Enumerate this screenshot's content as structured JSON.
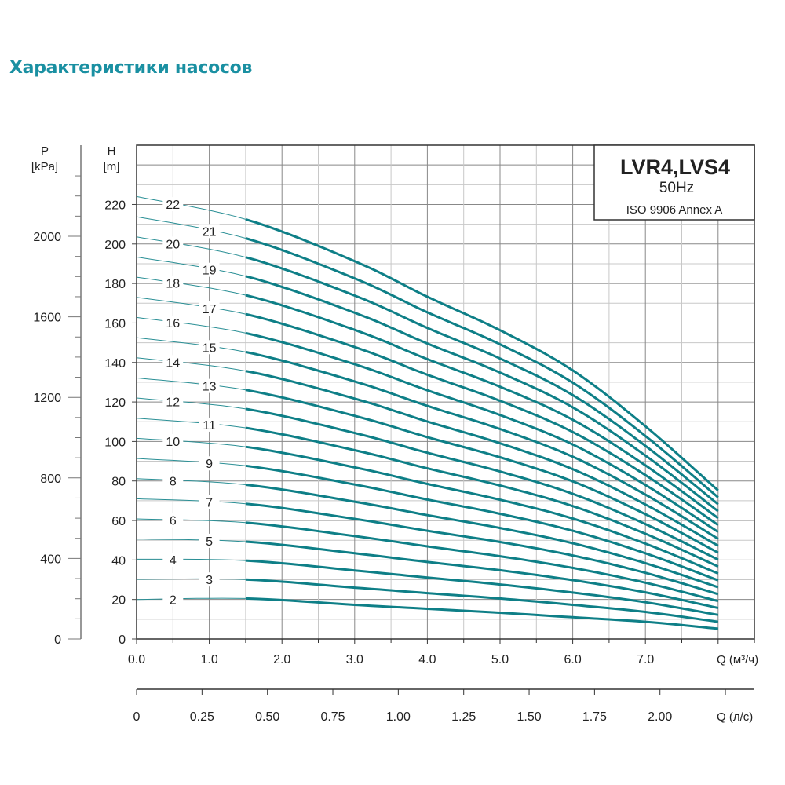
{
  "page_title": "Характеристики насосов",
  "chart_data": {
    "type": "line",
    "legend_box": {
      "model": "LVR4,LVS4",
      "frequency": "50Hz",
      "standard": "ISO 9906 Annex A"
    },
    "left_axis": {
      "label": "P",
      "unit": "[kPa]",
      "range": [
        0,
        2450
      ],
      "ticks": [
        "0",
        "400",
        "800",
        "1200",
        "1600",
        "2000"
      ]
    },
    "yaxis": {
      "label": "H",
      "unit": "[m]",
      "range": [
        0,
        250
      ],
      "ticks": [
        "0",
        "20",
        "40",
        "60",
        "80",
        "100",
        "120",
        "140",
        "160",
        "180",
        "200",
        "220"
      ]
    },
    "xaxis": {
      "label": "Q (м³/ч)",
      "range": [
        0,
        8.5
      ],
      "ticks": [
        "0.0",
        "1.0",
        "2.0",
        "3.0",
        "4.0",
        "5.0",
        "6.0",
        "7.0"
      ]
    },
    "xaxis2": {
      "label": "Q (л/с)",
      "ticks": [
        "0",
        "0.25",
        "0.50",
        "0.75",
        "1.00",
        "1.25",
        "1.50",
        "1.75",
        "2.00"
      ]
    },
    "grid": true,
    "colors": {
      "curve": "#0e7f87",
      "title": "#1a90a2"
    },
    "x": [
      0,
      1.5,
      3,
      4,
      5,
      6,
      7,
      8
    ],
    "series": [
      {
        "name": "2",
        "values": [
          20,
          20.5,
          17.3,
          15.3,
          13.3,
          11,
          8.7,
          5.2
        ]
      },
      {
        "name": "3",
        "values": [
          30.2,
          30.1,
          26,
          23.2,
          20.5,
          17.3,
          13.7,
          8.7
        ]
      },
      {
        "name": "4",
        "values": [
          40.4,
          39.7,
          34.7,
          31.1,
          27.6,
          23.5,
          18.6,
          12.2
        ]
      },
      {
        "name": "5",
        "values": [
          50.6,
          49.3,
          43.4,
          39,
          34.8,
          29.8,
          23.6,
          15.7
        ]
      },
      {
        "name": "6",
        "values": [
          60.8,
          58.9,
          52.1,
          46.9,
          41.9,
          36,
          28.5,
          19.2
        ]
      },
      {
        "name": "7",
        "values": [
          71,
          68.5,
          60.8,
          54.8,
          49.1,
          42.3,
          33.5,
          22.7
        ]
      },
      {
        "name": "8",
        "values": [
          81.2,
          78.1,
          69.5,
          62.7,
          56.2,
          48.5,
          38.4,
          26.2
        ]
      },
      {
        "name": "9",
        "values": [
          91.4,
          87.7,
          78.2,
          70.6,
          63.4,
          54.8,
          43.4,
          29.7
        ]
      },
      {
        "name": "10",
        "values": [
          101.6,
          97.3,
          86.9,
          78.5,
          70.5,
          61,
          48.3,
          33.2
        ]
      },
      {
        "name": "11",
        "values": [
          111.8,
          106.9,
          95.6,
          86.4,
          77.7,
          67.3,
          53.3,
          36.7
        ]
      },
      {
        "name": "12",
        "values": [
          122,
          116.5,
          104.3,
          94.3,
          84.8,
          73.5,
          58.2,
          40.2
        ]
      },
      {
        "name": "13",
        "values": [
          132.2,
          126.1,
          113,
          102.2,
          92,
          79.8,
          63.2,
          43.7
        ]
      },
      {
        "name": "14",
        "values": [
          142.4,
          135.7,
          121.7,
          110.1,
          99.1,
          86,
          68.1,
          47.2
        ]
      },
      {
        "name": "15",
        "values": [
          152.6,
          145.3,
          130.4,
          118,
          106.3,
          92.3,
          73.1,
          50.7
        ]
      },
      {
        "name": "16",
        "values": [
          162.8,
          154.9,
          139.1,
          125.9,
          113.4,
          98.5,
          78,
          54.2
        ]
      },
      {
        "name": "17",
        "values": [
          173,
          164.5,
          147.8,
          133.8,
          120.6,
          104.8,
          83,
          57.7
        ]
      },
      {
        "name": "18",
        "values": [
          183.2,
          174.1,
          156.5,
          141.7,
          127.7,
          111,
          87.9,
          61.2
        ]
      },
      {
        "name": "19",
        "values": [
          193.4,
          183.7,
          165.2,
          149.6,
          134.9,
          117.3,
          92.9,
          64.7
        ]
      },
      {
        "name": "20",
        "values": [
          203.6,
          193.3,
          173.9,
          157.5,
          142,
          123.5,
          97.8,
          68.2
        ]
      },
      {
        "name": "21",
        "values": [
          213.8,
          202.9,
          182.6,
          165.4,
          149.2,
          129.8,
          102.8,
          71.7
        ]
      },
      {
        "name": "22",
        "values": [
          224,
          212.5,
          191.3,
          173.3,
          156.3,
          136,
          107.7,
          75.2
        ]
      }
    ]
  }
}
